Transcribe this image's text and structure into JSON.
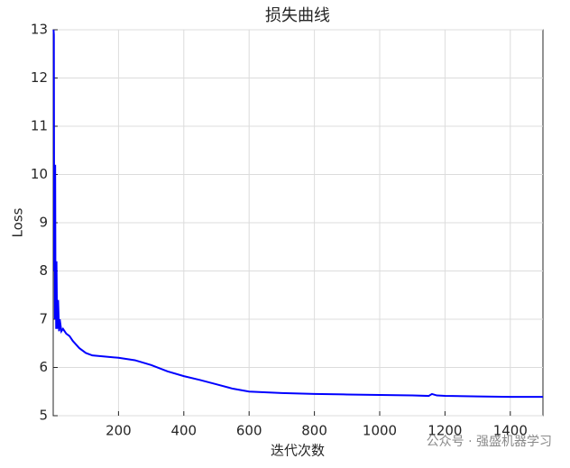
{
  "chart_data": {
    "type": "line",
    "title": "损失曲线",
    "x_label": "迭代次数",
    "y_label": "Loss",
    "watermark": "公众号 · 强盛机器学习",
    "x": [
      1,
      2,
      3,
      4,
      5,
      6,
      7,
      8,
      9,
      10,
      12,
      15,
      18,
      20,
      25,
      30,
      40,
      50,
      60,
      80,
      100,
      120,
      200,
      250,
      300,
      350,
      400,
      450,
      500,
      550,
      600,
      700,
      800,
      900,
      1000,
      1100,
      1150,
      1160,
      1175,
      1200,
      1300,
      1400,
      1500
    ],
    "series": [
      {
        "name": "Loss",
        "color": "#0000ff",
        "values": [
          13,
          12.9,
          8,
          10.2,
          7,
          10.2,
          7.2,
          8.2,
          6.8,
          8.2,
          6.8,
          7.4,
          6.75,
          7.0,
          6.75,
          6.8,
          6.7,
          6.65,
          6.55,
          6.4,
          6.3,
          6.25,
          6.2,
          6.15,
          6.05,
          5.92,
          5.82,
          5.74,
          5.65,
          5.56,
          5.5,
          5.47,
          5.45,
          5.44,
          5.43,
          5.42,
          5.41,
          5.45,
          5.42,
          5.41,
          5.4,
          5.39,
          5.39
        ]
      }
    ],
    "xlim": [
      0,
      1500
    ],
    "xticks": [
      200,
      400,
      600,
      800,
      1000,
      1200,
      1400
    ],
    "ylim": [
      5,
      13
    ],
    "yticks": [
      5,
      6,
      7,
      8,
      9,
      10,
      11,
      12,
      13
    ],
    "grid": true
  }
}
